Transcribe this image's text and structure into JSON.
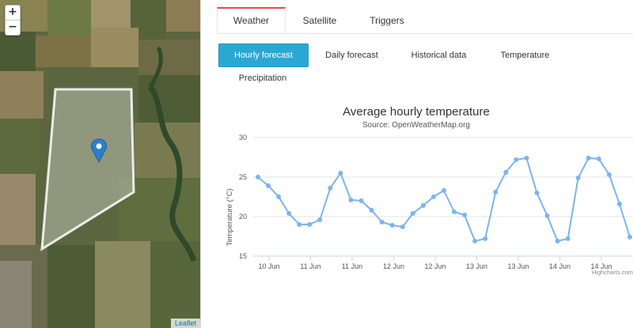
{
  "map": {
    "zoom_in": "+",
    "zoom_out": "−",
    "attribution": "Leaflet"
  },
  "tabs": [
    "Weather",
    "Satellite",
    "Triggers"
  ],
  "sub_tabs": [
    "Hourly forecast",
    "Daily forecast",
    "Historical data",
    "Temperature",
    "Precipitation"
  ],
  "colors": {
    "accent": "#2aa8d4",
    "series": "#7cb5ec",
    "active_tab_border": "#e8474c"
  },
  "chart_data": {
    "type": "line",
    "title": "Average hourly temperature",
    "subtitle": "Source: OpenWeatherMap.org",
    "ylabel": "Temperature (°C)",
    "xlabel": "",
    "ylim": [
      15,
      30
    ],
    "yticks": [
      15,
      20,
      25,
      30
    ],
    "xticks": [
      "10 Jun",
      "11 Jun",
      "11 Jun",
      "12 Jun",
      "12 Jun",
      "13 Jun",
      "13 Jun",
      "14 Jun",
      "14 Jun"
    ],
    "grid": true,
    "legend": "none",
    "credits": "Highcharts.com",
    "series": [
      {
        "values": [
          25.0,
          23.9,
          22.5,
          20.4,
          19.0,
          19.0,
          19.6,
          23.6,
          25.5,
          22.1,
          22.0,
          20.8,
          19.3,
          18.9,
          18.7,
          20.4,
          21.4,
          22.5,
          23.3,
          20.6,
          20.2,
          16.9,
          17.2,
          23.1,
          25.6,
          27.2,
          27.4,
          23.0,
          20.1,
          16.9,
          17.2,
          24.9,
          27.4,
          27.3,
          25.3,
          21.6,
          17.4
        ]
      }
    ]
  }
}
